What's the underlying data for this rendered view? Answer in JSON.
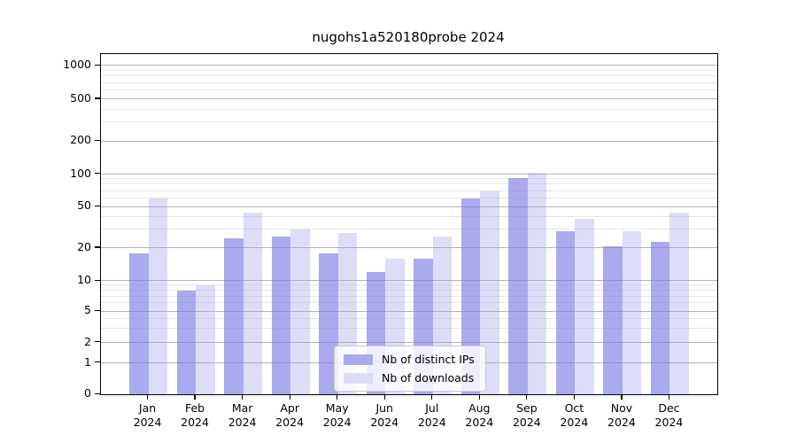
{
  "title": "nugohs1a520180probe 2024",
  "legend": {
    "items": [
      {
        "label": "Nb of distinct IPs",
        "color": "#aaaaee"
      },
      {
        "label": "Nb of downloads",
        "color": "#ddddf8"
      }
    ]
  },
  "colors": {
    "bar_distinct_ips": "#aaaaee",
    "bar_downloads": "#ddddf8",
    "grid_major": "#b4b4b4",
    "grid_minor": "#e7e7e7",
    "axis": "#000000"
  },
  "y_axis": {
    "tick_labels": [
      "0",
      "1",
      "2",
      "5",
      "10",
      "20",
      "50",
      "100",
      "200",
      "500",
      "1000"
    ]
  },
  "x_axis": {
    "months": [
      {
        "month": "Jan",
        "year": "2024"
      },
      {
        "month": "Feb",
        "year": "2024"
      },
      {
        "month": "Mar",
        "year": "2024"
      },
      {
        "month": "Apr",
        "year": "2024"
      },
      {
        "month": "May",
        "year": "2024"
      },
      {
        "month": "Jun",
        "year": "2024"
      },
      {
        "month": "Jul",
        "year": "2024"
      },
      {
        "month": "Aug",
        "year": "2024"
      },
      {
        "month": "Sep",
        "year": "2024"
      },
      {
        "month": "Oct",
        "year": "2024"
      },
      {
        "month": "Nov",
        "year": "2024"
      },
      {
        "month": "Dec",
        "year": "2024"
      }
    ]
  },
  "chart_data": {
    "type": "bar",
    "title": "nugohs1a520180probe 2024",
    "categories": [
      "Jan 2024",
      "Feb 2024",
      "Mar 2024",
      "Apr 2024",
      "May 2024",
      "Jun 2024",
      "Jul 2024",
      "Aug 2024",
      "Sep 2024",
      "Oct 2024",
      "Nov 2024",
      "Dec 2024"
    ],
    "series": [
      {
        "name": "Nb of distinct IPs",
        "color": "#aaaaee",
        "values": [
          18,
          8,
          25,
          26,
          18,
          12,
          16,
          60,
          92,
          29,
          21,
          23
        ]
      },
      {
        "name": "Nb of downloads",
        "color": "#ddddf8",
        "values": [
          60,
          9,
          44,
          30,
          28,
          16,
          26,
          70,
          102,
          38,
          29,
          44
        ]
      }
    ],
    "xlabel": "",
    "ylabel": "",
    "yscale": "log-like",
    "y_ticks": [
      0,
      1,
      2,
      5,
      10,
      20,
      50,
      100,
      200,
      500,
      1000
    ],
    "ylim": [
      0,
      1300
    ],
    "grid": true,
    "legend_position": "inside-bottom-center"
  }
}
